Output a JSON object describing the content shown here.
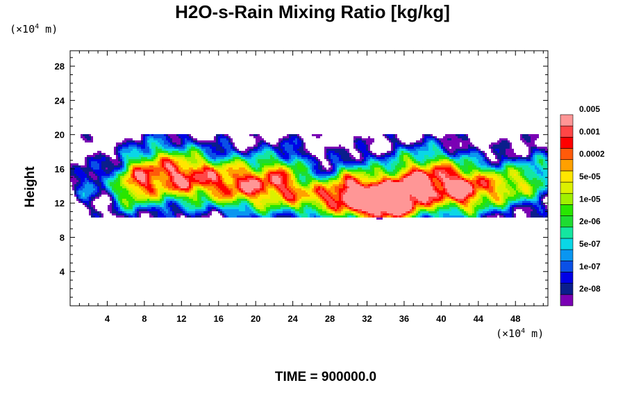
{
  "chart_data": {
    "type": "heatmap",
    "title": "H2O-s-Rain Mixing Ratio [kg/kg]",
    "ylabel": "Height",
    "xlabel": "",
    "x_unit": {
      "prefix": "(×10",
      "exp": "4",
      "suffix": " m)"
    },
    "y_unit": {
      "prefix": "(×10",
      "exp": "4",
      "suffix": " m)"
    },
    "x_ticks": [
      4,
      8,
      12,
      16,
      20,
      24,
      28,
      32,
      36,
      40,
      44,
      48
    ],
    "y_ticks": [
      4,
      8,
      12,
      16,
      20,
      24,
      28
    ],
    "xlim": [
      0,
      51.5
    ],
    "ylim": [
      0,
      29.8
    ],
    "footer": "TIME = 900000.0",
    "colorbar": {
      "colors": [
        "#7a00b4",
        "#0a1e8c",
        "#0000e6",
        "#0a50e6",
        "#0a96f0",
        "#0ad7e6",
        "#14e6a0",
        "#1edc32",
        "#28e600",
        "#a0f000",
        "#dcf000",
        "#ffe600",
        "#ffa000",
        "#ff5a0a",
        "#ff0000",
        "#ff4646",
        "#ff9696"
      ],
      "labels": [
        "2e-08",
        "1e-07",
        "5e-07",
        "2e-06",
        "1e-05",
        "5e-05",
        "0.0002",
        "0.001",
        "0.005"
      ]
    },
    "field_description": "rain mixing ratio band between about 10 and 20 (x10^4 m) height across the domain, maximum near x=33-36, height 11-12",
    "clusters": [
      {
        "x": 2.0,
        "y": 14.5,
        "sx": 1.0,
        "sy": 1.8,
        "amp": 4.5
      },
      {
        "x": 6.5,
        "y": 14.0,
        "sx": 1.6,
        "sy": 2.2,
        "amp": 8.0
      },
      {
        "x": 9.5,
        "y": 15.5,
        "sx": 2.2,
        "sy": 2.6,
        "amp": 9.0
      },
      {
        "x": 13.0,
        "y": 15.0,
        "sx": 2.0,
        "sy": 2.4,
        "amp": 8.5
      },
      {
        "x": 16.5,
        "y": 14.5,
        "sx": 2.0,
        "sy": 2.2,
        "amp": 7.5
      },
      {
        "x": 20.0,
        "y": 14.0,
        "sx": 2.2,
        "sy": 2.4,
        "amp": 9.5
      },
      {
        "x": 23.5,
        "y": 14.5,
        "sx": 1.8,
        "sy": 2.6,
        "amp": 8.0
      },
      {
        "x": 27.0,
        "y": 12.5,
        "sx": 2.0,
        "sy": 1.6,
        "amp": 8.0
      },
      {
        "x": 30.5,
        "y": 13.5,
        "sx": 2.0,
        "sy": 2.4,
        "amp": 10.0
      },
      {
        "x": 34.0,
        "y": 12.0,
        "sx": 2.4,
        "sy": 1.8,
        "amp": 13.5
      },
      {
        "x": 36.5,
        "y": 14.5,
        "sx": 2.2,
        "sy": 2.6,
        "amp": 9.0
      },
      {
        "x": 40.0,
        "y": 14.5,
        "sx": 2.0,
        "sy": 2.6,
        "amp": 8.5
      },
      {
        "x": 43.0,
        "y": 13.5,
        "sx": 1.8,
        "sy": 2.2,
        "amp": 10.0
      },
      {
        "x": 47.0,
        "y": 14.0,
        "sx": 1.8,
        "sy": 2.0,
        "amp": 9.0
      },
      {
        "x": 50.5,
        "y": 15.0,
        "sx": 1.4,
        "sy": 2.2,
        "amp": 6.0
      }
    ]
  }
}
